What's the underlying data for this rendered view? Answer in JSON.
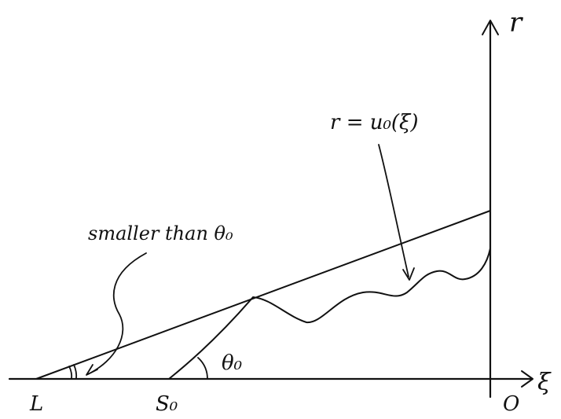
{
  "axes": {
    "horizontal_label": "ξ",
    "vertical_label": "r",
    "origin_label": "O"
  },
  "points": {
    "left_point": "L",
    "start_point": "S₀"
  },
  "labels": {
    "curve_label": "r = u₀(ξ)",
    "small_angle_label": "smaller than θ₀",
    "angle_label": "θ₀"
  },
  "colors": {
    "ink": "#111111",
    "background": "#ffffff"
  }
}
